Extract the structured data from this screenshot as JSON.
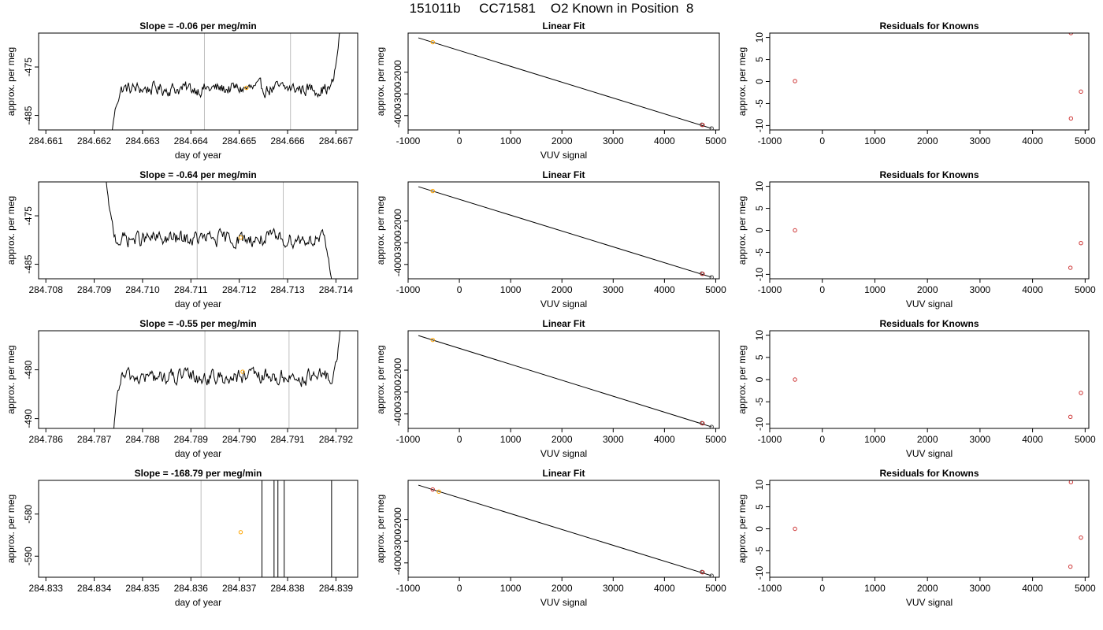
{
  "page_title": "151011b     CC71581    O2 Known in Position  8",
  "colors": {
    "trace": "#000000",
    "marker_orange": "#ffa500",
    "marker_red": "#cd3333",
    "marker_dark": "#444444",
    "vline_gray": "#bebebe",
    "frame": "#000000"
  },
  "chart_data": [
    {
      "type": "line",
      "row": 1,
      "panel": "time-series",
      "title": "Slope =  -0.06  per meg/min",
      "xlabel": "day of year",
      "ylabel": "approx. per meg",
      "xlim": [
        284.66085,
        284.66745
      ],
      "ylim": [
        -488,
        -468
      ],
      "xticks": [
        284.661,
        284.662,
        284.663,
        284.664,
        284.665,
        284.666,
        284.667
      ],
      "xtick_labels": [
        "284.661",
        "284.662",
        "284.663",
        "284.664",
        "284.665",
        "284.666",
        "284.667"
      ],
      "yticks": [
        -475,
        -485
      ],
      "ytick_labels": [
        "-475",
        "-485"
      ],
      "trace_start": 284.66236,
      "trace_end": 284.6671,
      "trace_base": -479.5,
      "trace_noise": 1.6,
      "start_level": -489,
      "end_level": -465,
      "ramp_fraction": 0.05,
      "vlines": [
        284.66428,
        284.66606
      ],
      "vline_color": "gray",
      "markers": [
        {
          "x": 284.66515,
          "y": -479.3,
          "color": "orange"
        }
      ]
    },
    {
      "type": "scatter",
      "row": 1,
      "panel": "linear-fit",
      "title": "Linear Fit",
      "xlabel": "VUV signal",
      "ylabel": "approx. per meg",
      "xlim": [
        -1000,
        5070
      ],
      "ylim": [
        -4660,
        -200
      ],
      "xticks": [
        -1000,
        0,
        1000,
        2000,
        3000,
        4000,
        5000
      ],
      "xtick_labels": [
        "-1000",
        "0",
        "1000",
        "2000",
        "3000",
        "4000",
        "5000"
      ],
      "yticks": [
        -2000,
        -3000,
        -4000
      ],
      "ytick_labels": [
        "-2000",
        "-3000",
        "-4000"
      ],
      "fit_line": {
        "x": [
          -800,
          4920
        ],
        "y": [
          -420,
          -4590
        ]
      },
      "points": [
        {
          "x": -520,
          "y": -619,
          "color": "orange"
        },
        {
          "x": 4730,
          "y": -4420,
          "color": "dark"
        },
        {
          "x": 4745,
          "y": -4430,
          "color": "red"
        },
        {
          "x": 4920,
          "y": -4590,
          "color": "dark"
        }
      ]
    },
    {
      "type": "scatter",
      "row": 1,
      "panel": "residuals",
      "title": "Residuals for Knowns",
      "xlabel": "",
      "ylabel": "approx. per meg",
      "xlim": [
        -1000,
        5070
      ],
      "ylim": [
        -11,
        11
      ],
      "xticks": [
        -1000,
        0,
        1000,
        2000,
        3000,
        4000,
        5000
      ],
      "xtick_labels": [
        "-1000",
        "0",
        "1000",
        "2000",
        "3000",
        "4000",
        "5000"
      ],
      "yticks": [
        10,
        5,
        0,
        -5,
        -10
      ],
      "ytick_labels": [
        "10",
        "5",
        "0",
        "-5",
        "-10"
      ],
      "points": [
        {
          "x": -520,
          "y": 0.1,
          "color": "red"
        },
        {
          "x": 4730,
          "y": 11,
          "color": "red"
        },
        {
          "x": 4730,
          "y": -8.4,
          "color": "red"
        },
        {
          "x": 4920,
          "y": -2.3,
          "color": "red"
        }
      ]
    },
    {
      "type": "line",
      "row": 2,
      "panel": "time-series",
      "title": "Slope =  -0.64  per meg/min",
      "xlabel": "day of year",
      "ylabel": "approx. per meg",
      "xlim": [
        284.70785,
        284.71445
      ],
      "ylim": [
        -488,
        -468
      ],
      "xticks": [
        284.708,
        284.709,
        284.71,
        284.711,
        284.712,
        284.713,
        284.714
      ],
      "xtick_labels": [
        "284.708",
        "284.709",
        "284.710",
        "284.711",
        "284.712",
        "284.713",
        "284.714"
      ],
      "yticks": [
        -475,
        -485
      ],
      "ytick_labels": [
        "-475",
        "-485"
      ],
      "trace_start": 284.70925,
      "trace_end": 284.71392,
      "trace_base": -479.8,
      "trace_noise": 1.8,
      "start_level": -468,
      "end_level": -489,
      "ramp_fraction": 0.05,
      "vlines": [
        284.71113,
        284.71291
      ],
      "vline_color": "gray",
      "markers": [
        {
          "x": 284.71203,
          "y": -479.5,
          "color": "orange"
        }
      ]
    },
    {
      "type": "scatter",
      "row": 2,
      "panel": "linear-fit",
      "title": "Linear Fit",
      "xlabel": "VUV signal",
      "ylabel": "approx. per meg",
      "xlim": [
        -1000,
        5070
      ],
      "ylim": [
        -4660,
        -200
      ],
      "xticks": [
        -1000,
        0,
        1000,
        2000,
        3000,
        4000,
        5000
      ],
      "xtick_labels": [
        "-1000",
        "0",
        "1000",
        "2000",
        "3000",
        "4000",
        "5000"
      ],
      "yticks": [
        -2000,
        -3000,
        -4000
      ],
      "ytick_labels": [
        "-2000",
        "-3000",
        "-4000"
      ],
      "fit_line": {
        "x": [
          -800,
          4920
        ],
        "y": [
          -420,
          -4590
        ]
      },
      "points": [
        {
          "x": -520,
          "y": -619,
          "color": "orange"
        },
        {
          "x": 4730,
          "y": -4420,
          "color": "dark"
        },
        {
          "x": 4745,
          "y": -4430,
          "color": "red"
        },
        {
          "x": 4920,
          "y": -4590,
          "color": "dark"
        }
      ]
    },
    {
      "type": "scatter",
      "row": 2,
      "panel": "residuals",
      "title": "Residuals for Knowns",
      "xlabel": "VUV signal",
      "ylabel": "approx. per meg",
      "xlim": [
        -1000,
        5070
      ],
      "ylim": [
        -11,
        11
      ],
      "xticks": [
        -1000,
        0,
        1000,
        2000,
        3000,
        4000,
        5000
      ],
      "xtick_labels": [
        "-1000",
        "0",
        "1000",
        "2000",
        "3000",
        "4000",
        "5000"
      ],
      "yticks": [
        10,
        5,
        0,
        -5,
        -10
      ],
      "ytick_labels": [
        "10",
        "5",
        "0",
        "-5",
        "-10"
      ],
      "points": [
        {
          "x": -520,
          "y": 0.0,
          "color": "red"
        },
        {
          "x": 4720,
          "y": -8.5,
          "color": "red"
        },
        {
          "x": 4920,
          "y": -2.9,
          "color": "red"
        }
      ]
    },
    {
      "type": "line",
      "row": 3,
      "panel": "time-series",
      "title": "Slope =  -0.55  per meg/min",
      "xlabel": "day of year",
      "ylabel": "approx. per meg",
      "xlim": [
        284.78585,
        284.79245
      ],
      "ylim": [
        -492,
        -472
      ],
      "xticks": [
        284.786,
        284.787,
        284.788,
        284.789,
        284.79,
        284.791,
        284.792
      ],
      "xtick_labels": [
        "284.786",
        "284.787",
        "284.788",
        "284.789",
        "284.790",
        "284.791",
        "284.792"
      ],
      "yticks": [
        -480,
        -490
      ],
      "ytick_labels": [
        "-480",
        "-490"
      ],
      "trace_start": 284.7874,
      "trace_end": 284.7921,
      "trace_base": -481.5,
      "trace_noise": 1.8,
      "start_level": -493,
      "end_level": -470,
      "ramp_fraction": 0.04,
      "vlines": [
        284.78929,
        284.79103
      ],
      "vline_color": "gray",
      "markers": [
        {
          "x": 284.79007,
          "y": -480.4,
          "color": "orange"
        }
      ]
    },
    {
      "type": "scatter",
      "row": 3,
      "panel": "linear-fit",
      "title": "Linear Fit",
      "xlabel": "VUV signal",
      "ylabel": "approx. per meg",
      "xlim": [
        -1000,
        5070
      ],
      "ylim": [
        -4660,
        -200
      ],
      "xticks": [
        -1000,
        0,
        1000,
        2000,
        3000,
        4000,
        5000
      ],
      "xtick_labels": [
        "-1000",
        "0",
        "1000",
        "2000",
        "3000",
        "4000",
        "5000"
      ],
      "yticks": [
        -2000,
        -3000,
        -4000
      ],
      "ytick_labels": [
        "-2000",
        "-3000",
        "-4000"
      ],
      "fit_line": {
        "x": [
          -800,
          4920
        ],
        "y": [
          -420,
          -4590
        ]
      },
      "points": [
        {
          "x": -520,
          "y": -619,
          "color": "orange"
        },
        {
          "x": 4730,
          "y": -4420,
          "color": "dark"
        },
        {
          "x": 4745,
          "y": -4430,
          "color": "red"
        },
        {
          "x": 4920,
          "y": -4590,
          "color": "dark"
        }
      ]
    },
    {
      "type": "scatter",
      "row": 3,
      "panel": "residuals",
      "title": "Residuals for Knowns",
      "xlabel": "VUV signal",
      "ylabel": "approx. per meg",
      "xlim": [
        -1000,
        5070
      ],
      "ylim": [
        -11,
        11
      ],
      "xticks": [
        -1000,
        0,
        1000,
        2000,
        3000,
        4000,
        5000
      ],
      "xtick_labels": [
        "-1000",
        "0",
        "1000",
        "2000",
        "3000",
        "4000",
        "5000"
      ],
      "yticks": [
        10,
        5,
        0,
        -5,
        -10
      ],
      "ytick_labels": [
        "10",
        "5",
        "0",
        "-5",
        "-10"
      ],
      "points": [
        {
          "x": -520,
          "y": 0.0,
          "color": "red"
        },
        {
          "x": 4720,
          "y": -8.4,
          "color": "red"
        },
        {
          "x": 4920,
          "y": -3.0,
          "color": "red"
        }
      ]
    },
    {
      "type": "line",
      "row": 4,
      "panel": "time-series",
      "title": "Slope =  -168.79  per meg/min",
      "xlabel": "day of year",
      "ylabel": "approx. per meg",
      "xlim": [
        284.83285,
        284.83945
      ],
      "ylim": [
        -595,
        -572
      ],
      "xticks": [
        284.833,
        284.834,
        284.835,
        284.836,
        284.837,
        284.838,
        284.839
      ],
      "xtick_labels": [
        "284.833",
        "284.834",
        "284.835",
        "284.836",
        "284.837",
        "284.838",
        "284.839"
      ],
      "yticks": [
        -580,
        -590
      ],
      "ytick_labels": [
        "-580",
        "-590"
      ],
      "vlines": [
        284.83621
      ],
      "vline_color": "gray",
      "black_vlines": [
        284.83747,
        284.83772,
        284.8378,
        284.83793,
        284.83891
      ],
      "markers": [
        {
          "x": 284.83703,
          "y": -584.3,
          "color": "orange"
        }
      ]
    },
    {
      "type": "scatter",
      "row": 4,
      "panel": "linear-fit",
      "title": "Linear Fit",
      "xlabel": "VUV signal",
      "ylabel": "approx. per meg",
      "xlim": [
        -1000,
        5070
      ],
      "ylim": [
        -4660,
        -200
      ],
      "xticks": [
        -1000,
        0,
        1000,
        2000,
        3000,
        4000,
        5000
      ],
      "xtick_labels": [
        "-1000",
        "0",
        "1000",
        "2000",
        "3000",
        "4000",
        "5000"
      ],
      "yticks": [
        -2000,
        -3000,
        -4000
      ],
      "ytick_labels": [
        "-2000",
        "-3000",
        "-4000"
      ],
      "fit_line": {
        "x": [
          -800,
          4920
        ],
        "y": [
          -420,
          -4590
        ]
      },
      "points": [
        {
          "x": -520,
          "y": -619,
          "color": "red"
        },
        {
          "x": -400,
          "y": -720,
          "color": "orange"
        },
        {
          "x": 4730,
          "y": -4420,
          "color": "dark"
        },
        {
          "x": 4745,
          "y": -4430,
          "color": "red"
        },
        {
          "x": 4920,
          "y": -4590,
          "color": "dark"
        }
      ]
    },
    {
      "type": "scatter",
      "row": 4,
      "panel": "residuals",
      "title": "Residuals for Knowns",
      "xlabel": "VUV signal",
      "ylabel": "approx. per meg",
      "xlim": [
        -1000,
        5070
      ],
      "ylim": [
        -11,
        11
      ],
      "xticks": [
        -1000,
        0,
        1000,
        2000,
        3000,
        4000,
        5000
      ],
      "xtick_labels": [
        "-1000",
        "0",
        "1000",
        "2000",
        "3000",
        "4000",
        "5000"
      ],
      "yticks": [
        10,
        5,
        0,
        -5,
        -10
      ],
      "ytick_labels": [
        "10",
        "5",
        "0",
        "-5",
        "-10"
      ],
      "points": [
        {
          "x": -520,
          "y": 0.0,
          "color": "red"
        },
        {
          "x": 4730,
          "y": 10.6,
          "color": "red"
        },
        {
          "x": 4720,
          "y": -8.6,
          "color": "red"
        },
        {
          "x": 4920,
          "y": -2.0,
          "color": "red"
        }
      ]
    }
  ]
}
